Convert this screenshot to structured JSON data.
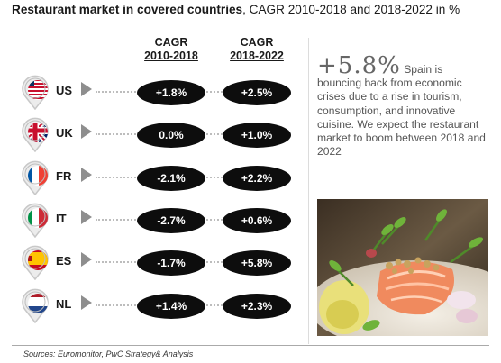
{
  "title": {
    "bold": "Restaurant market in covered countries",
    "rest": ", CAGR 2010-2018 and 2018-2022 in %"
  },
  "columns": [
    {
      "line1": "CAGR",
      "line2": "2010-2018"
    },
    {
      "line1": "CAGR",
      "line2": "2018-2022"
    }
  ],
  "chart_data": {
    "type": "table",
    "title": "Restaurant market in covered countries, CAGR 2010-2018 and 2018-2022 in %",
    "columns": [
      "CAGR 2010-2018",
      "CAGR 2018-2022"
    ],
    "rows": [
      {
        "country": "US",
        "flag": "us-flag-icon",
        "cagr_2010_2018": "+1.8%",
        "cagr_2018_2022": "+2.5%"
      },
      {
        "country": "UK",
        "flag": "uk-flag-icon",
        "cagr_2010_2018": "0.0%",
        "cagr_2018_2022": "+1.0%"
      },
      {
        "country": "FR",
        "flag": "fr-flag-icon",
        "cagr_2010_2018": "-2.1%",
        "cagr_2018_2022": "+2.2%"
      },
      {
        "country": "IT",
        "flag": "it-flag-icon",
        "cagr_2010_2018": "-2.7%",
        "cagr_2018_2022": "+0.6%"
      },
      {
        "country": "ES",
        "flag": "es-flag-icon",
        "cagr_2010_2018": "-1.7%",
        "cagr_2018_2022": "+5.8%"
      },
      {
        "country": "NL",
        "flag": "nl-flag-icon",
        "cagr_2010_2018": "+1.4%",
        "cagr_2018_2022": "+2.3%"
      }
    ]
  },
  "callout": {
    "figure": "+5.8%",
    "lead": "Spain is",
    "text": "bouncing back from economic crises due to a rise in tourism, consumption, and innovative cuisine. We expect the restaurant market to boom between 2018 and 2022"
  },
  "photo_icon": "salmon-dish-photo",
  "colors": {
    "oval": "#0d0d0d",
    "arrow": "#8e8e8e",
    "pin_border": "#c8c8c8"
  },
  "source": "Sources: Euromonitor, PwC Strategy& Analysis"
}
